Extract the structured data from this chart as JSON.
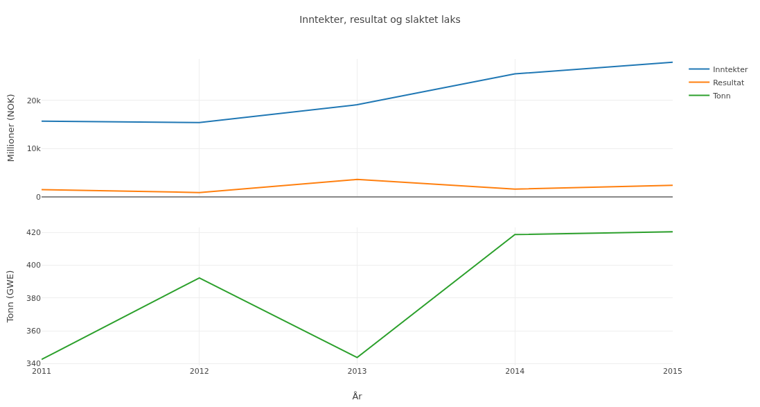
{
  "chart_data": [
    {
      "type": "line",
      "title": "Inntekter, resultat og slaktet laks",
      "ylabel": "Millioner (NOK)",
      "x": [
        2011,
        2012,
        2013,
        2014,
        2015
      ],
      "series": [
        {
          "name": "Inntekter",
          "color": "#1f77b4",
          "values": [
            15700,
            15400,
            19100,
            25500,
            27900
          ]
        },
        {
          "name": "Resultat",
          "color": "#ff7f0e",
          "values": [
            1500,
            900,
            3600,
            1600,
            2400
          ]
        }
      ],
      "xlim": [
        2011,
        2015
      ],
      "ylim": [
        0,
        28600
      ],
      "yticks": [
        0,
        {
          "value": 10000,
          "label": "10k"
        },
        {
          "value": 20000,
          "label": "20k"
        }
      ],
      "grid": true,
      "legend": "top right",
      "tick_labels": "y"
    },
    {
      "type": "line",
      "xlabel": "År",
      "ylabel": "Tonn (GWE)",
      "x": [
        2011,
        2012,
        2013,
        2014,
        2015
      ],
      "series": [
        {
          "name": "Tonn",
          "color": "#2ca02c",
          "values": [
            342.6,
            392.3,
            343.8,
            418.7,
            420.4
          ]
        }
      ],
      "xlim": [
        2011,
        2015
      ],
      "xticks": [
        2011,
        2012,
        2013,
        2014,
        2015
      ],
      "ylim": [
        339,
        423
      ],
      "yticks": [
        340,
        360,
        380,
        400,
        420
      ],
      "grid": true,
      "legend": "top right"
    }
  ]
}
